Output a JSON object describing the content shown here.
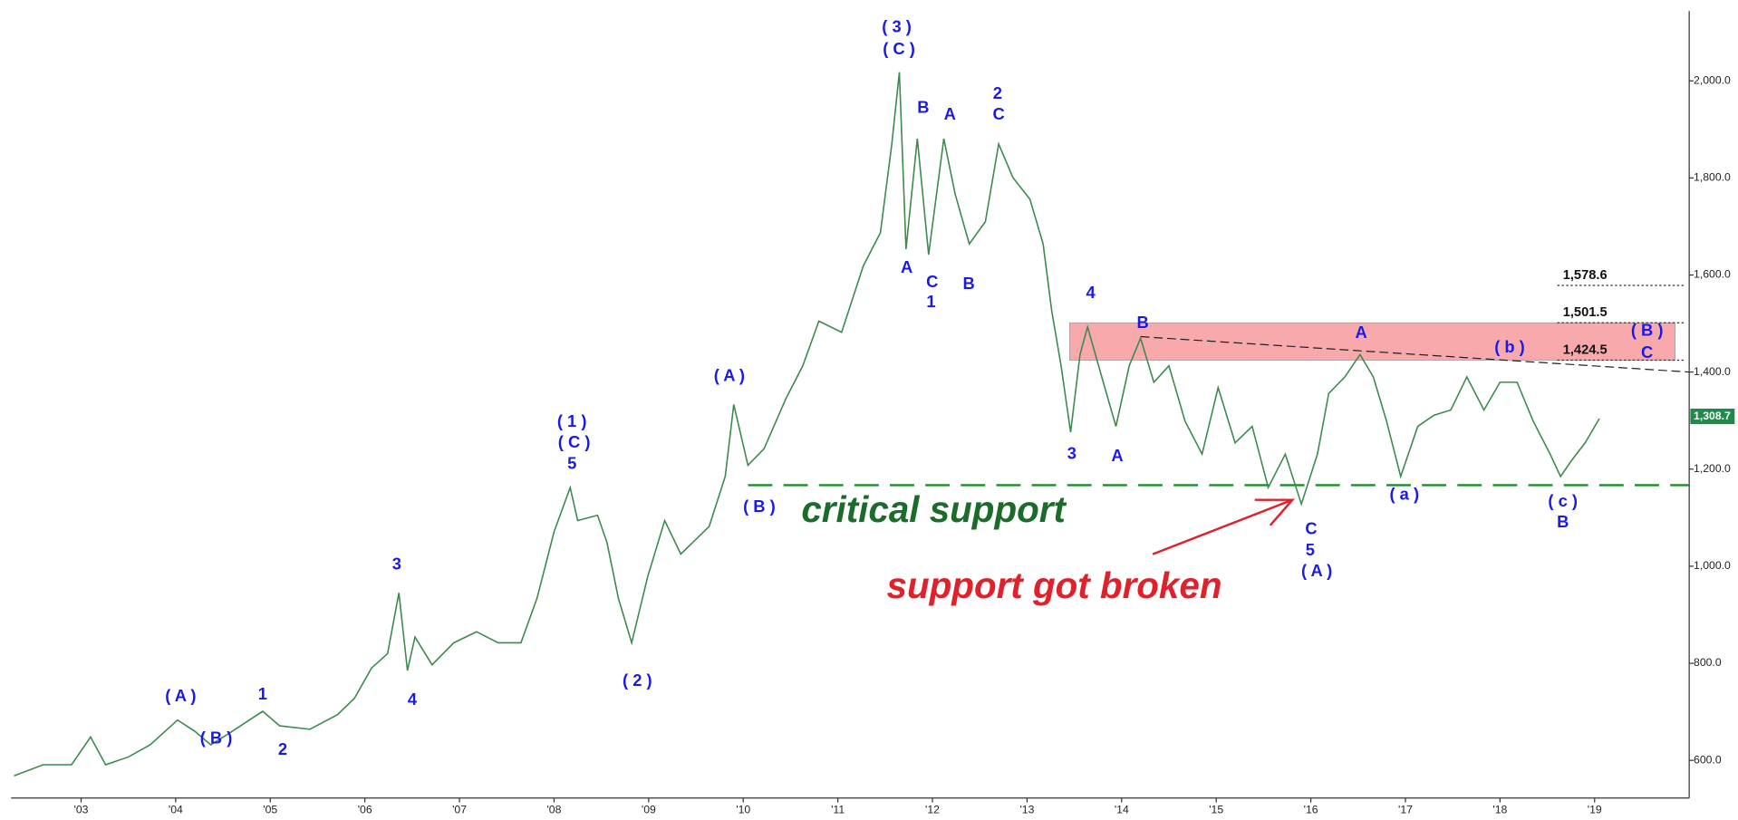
{
  "chart_data": {
    "type": "line",
    "x": [
      2002.29,
      2002.6,
      2002.9,
      2003.1,
      2003.26,
      2003.5,
      2003.73,
      2004.02,
      2004.2,
      2004.37,
      2004.6,
      2004.92,
      2005.1,
      2005.42,
      2005.71,
      2005.89,
      2006.07,
      2006.24,
      2006.36,
      2006.45,
      2006.53,
      2006.71,
      2006.94,
      2007.18,
      2007.41,
      2007.65,
      2007.82,
      2008.0,
      2008.17,
      2008.25,
      2008.46,
      2008.56,
      2008.68,
      2008.82,
      2008.99,
      2009.17,
      2009.34,
      2009.64,
      2009.81,
      2009.9,
      2010.05,
      2010.22,
      2010.45,
      2010.63,
      2010.8,
      2011.04,
      2011.27,
      2011.45,
      2011.57,
      2011.65,
      2011.72,
      2011.84,
      2011.96,
      2012.12,
      2012.24,
      2012.39,
      2012.56,
      2012.7,
      2012.85,
      2013.03,
      2013.17,
      2013.26,
      2013.36,
      2013.46,
      2013.56,
      2013.64,
      2013.79,
      2013.94,
      2014.08,
      2014.2,
      2014.34,
      2014.5,
      2014.67,
      2014.85,
      2015.02,
      2015.2,
      2015.38,
      2015.55,
      2015.73,
      2015.9,
      2016.07,
      2016.19,
      2016.36,
      2016.52,
      2016.66,
      2016.8,
      2016.95,
      2017.13,
      2017.3,
      2017.48,
      2017.65,
      2017.83,
      2018.0,
      2018.18,
      2018.35,
      2018.53,
      2018.64,
      2018.76,
      2018.9,
      2019.05
    ],
    "values": [
      568,
      591,
      591,
      648,
      591,
      607,
      632,
      683,
      660,
      632,
      660,
      701,
      671,
      664,
      694,
      728,
      790,
      820,
      945,
      785,
      854,
      797,
      842,
      865,
      842,
      842,
      934,
      1071,
      1162,
      1094,
      1105,
      1048,
      934,
      842,
      979,
      1094,
      1025,
      1082,
      1185,
      1333,
      1208,
      1242,
      1345,
      1413,
      1505,
      1482,
      1619,
      1687,
      1870,
      2018,
      1653,
      1881,
      1642,
      1881,
      1767,
      1664,
      1710,
      1870,
      1801,
      1756,
      1664,
      1527,
      1413,
      1276,
      1436,
      1493,
      1390,
      1288,
      1413,
      1470,
      1379,
      1413,
      1299,
      1231,
      1368,
      1254,
      1288,
      1162,
      1231,
      1128,
      1231,
      1356,
      1390,
      1436,
      1390,
      1299,
      1185,
      1288,
      1311,
      1322,
      1390,
      1322,
      1379,
      1379,
      1299,
      1231,
      1185,
      1219,
      1254,
      1304
    ],
    "color": "#3c8a4e",
    "xlim": [
      2002.26,
      2020.0
    ],
    "ylim": [
      522.4,
      2143.8
    ],
    "xticks": [
      {
        "value": 2003,
        "label": "'03"
      },
      {
        "value": 2004,
        "label": "'04"
      },
      {
        "value": 2005,
        "label": "'05"
      },
      {
        "value": 2006,
        "label": "'06"
      },
      {
        "value": 2007,
        "label": "'07"
      },
      {
        "value": 2008,
        "label": "'08"
      },
      {
        "value": 2009,
        "label": "'09"
      },
      {
        "value": 2010,
        "label": "'10"
      },
      {
        "value": 2011,
        "label": "'11"
      },
      {
        "value": 2012,
        "label": "'12"
      },
      {
        "value": 2013,
        "label": "'13"
      },
      {
        "value": 2014,
        "label": "'14"
      },
      {
        "value": 2015,
        "label": "'15"
      },
      {
        "value": 2016,
        "label": "'16"
      },
      {
        "value": 2017,
        "label": "'17"
      },
      {
        "value": 2018,
        "label": "'18"
      },
      {
        "value": 2019,
        "label": "'19"
      }
    ],
    "yticks": [
      {
        "value": 600,
        "label": "600.0"
      },
      {
        "value": 800,
        "label": "800.0"
      },
      {
        "value": 1000,
        "label": "1,000.0"
      },
      {
        "value": 1200,
        "label": "1,200.0"
      },
      {
        "value": 1400,
        "label": "1,400.0"
      },
      {
        "value": 1600,
        "label": "1,600.0"
      },
      {
        "value": 1800,
        "label": "1,800.0"
      },
      {
        "value": 2000,
        "label": "2,000.0"
      }
    ],
    "levels": [
      {
        "value": 1578.6,
        "label": "1,578.6"
      },
      {
        "value": 1501.5,
        "label": "1,501.5"
      },
      {
        "value": 1424.5,
        "label": "1,424.5"
      }
    ],
    "zone_x": [
      2013.45,
      2019.85
    ],
    "last_price": {
      "value": 1308.7,
      "label": "1,308.7"
    },
    "support": {
      "value": 1167,
      "x_start": 2010.05
    },
    "trendline": {
      "x": [
        2014.2,
        2020.0
      ],
      "values": [
        1473,
        1400
      ]
    },
    "annotations": [
      "( 3 )",
      "( C )",
      "B",
      "A",
      "2",
      "C",
      "A",
      "C",
      "1",
      "B",
      "4",
      "B",
      "3",
      "A",
      "A",
      "( b )",
      "( B )",
      "C",
      "( a )",
      "( c )",
      "B",
      "C",
      "5",
      "( A )",
      "( A )",
      "( B )",
      "( 1 )",
      "( C )",
      "5",
      "3",
      "4",
      "( 2 )",
      "( A )",
      "1",
      "( B )",
      "2"
    ],
    "support_text": "critical support",
    "broken_text": "support got broken"
  }
}
